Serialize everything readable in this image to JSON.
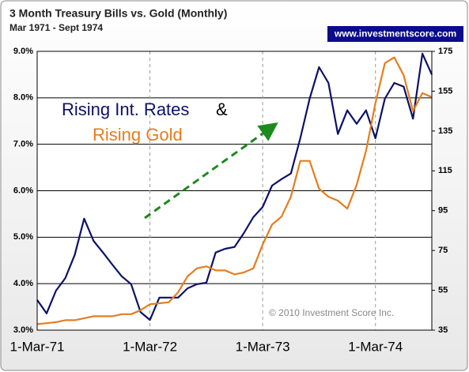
{
  "chart_data": {
    "type": "line",
    "title": "3 Month Treasury Bills vs. Gold (Monthly)",
    "subtitle": "Mar 1971 - Sept 1974",
    "source": "www.investmentscore.com",
    "annotations": [
      "Rising Int. Rates",
      "&",
      "Rising Gold",
      "© 2010 Investment Score Inc."
    ],
    "categories": [
      "1-Mar-71",
      null,
      null,
      null,
      null,
      null,
      null,
      null,
      null,
      null,
      null,
      null,
      "1-Mar-72",
      null,
      null,
      null,
      null,
      null,
      null,
      null,
      null,
      null,
      null,
      null,
      "1-Mar-73",
      null,
      null,
      null,
      null,
      null,
      null,
      null,
      null,
      null,
      null,
      null,
      "1-Mar-74",
      null,
      null,
      null,
      null,
      null,
      null
    ],
    "series": [
      {
        "name": "3 Month Treasury Bills",
        "color": "#0d1166",
        "values": [
          3.65,
          3.36,
          3.85,
          4.12,
          4.62,
          5.4,
          4.92,
          4.67,
          4.41,
          4.16,
          3.99,
          3.39,
          3.22,
          3.7,
          3.7,
          3.7,
          3.9,
          3.99,
          4.02,
          4.67,
          4.75,
          4.79,
          5.09,
          5.43,
          5.65,
          6.11,
          6.25,
          6.37,
          7.13,
          7.98,
          8.66,
          8.32,
          7.22,
          7.73,
          7.44,
          7.73,
          7.13,
          7.98,
          8.32,
          8.24,
          7.55,
          8.95,
          8.5
        ]
      },
      {
        "name": "Gold",
        "color": "#e57d1e",
        "axis": "y2",
        "values": [
          38,
          38.5,
          39,
          40,
          40,
          41,
          42,
          42,
          42,
          43,
          43,
          45,
          48,
          48.5,
          49,
          54,
          62,
          66,
          67,
          65,
          65,
          63,
          64,
          66,
          78,
          88,
          92,
          102,
          120,
          120,
          106,
          102,
          100,
          96,
          108,
          125,
          149,
          169,
          172,
          163,
          145,
          154,
          152
        ]
      }
    ],
    "ylim": [
      3.0,
      9.0
    ],
    "yticks": [
      {
        "value": 3.0,
        "label": "3.0%"
      },
      {
        "value": 4.0,
        "label": "4.0%"
      },
      {
        "value": 5.0,
        "label": "5.0%"
      },
      {
        "value": 6.0,
        "label": "6.0%"
      },
      {
        "value": 7.0,
        "label": "7.0%"
      },
      {
        "value": 8.0,
        "label": "8.0%"
      },
      {
        "value": 9.0,
        "label": "9.0%"
      }
    ],
    "y2lim": [
      35,
      175
    ],
    "y2ticks": [
      35,
      55,
      75,
      95,
      115,
      135,
      155,
      175
    ],
    "grid": true
  }
}
